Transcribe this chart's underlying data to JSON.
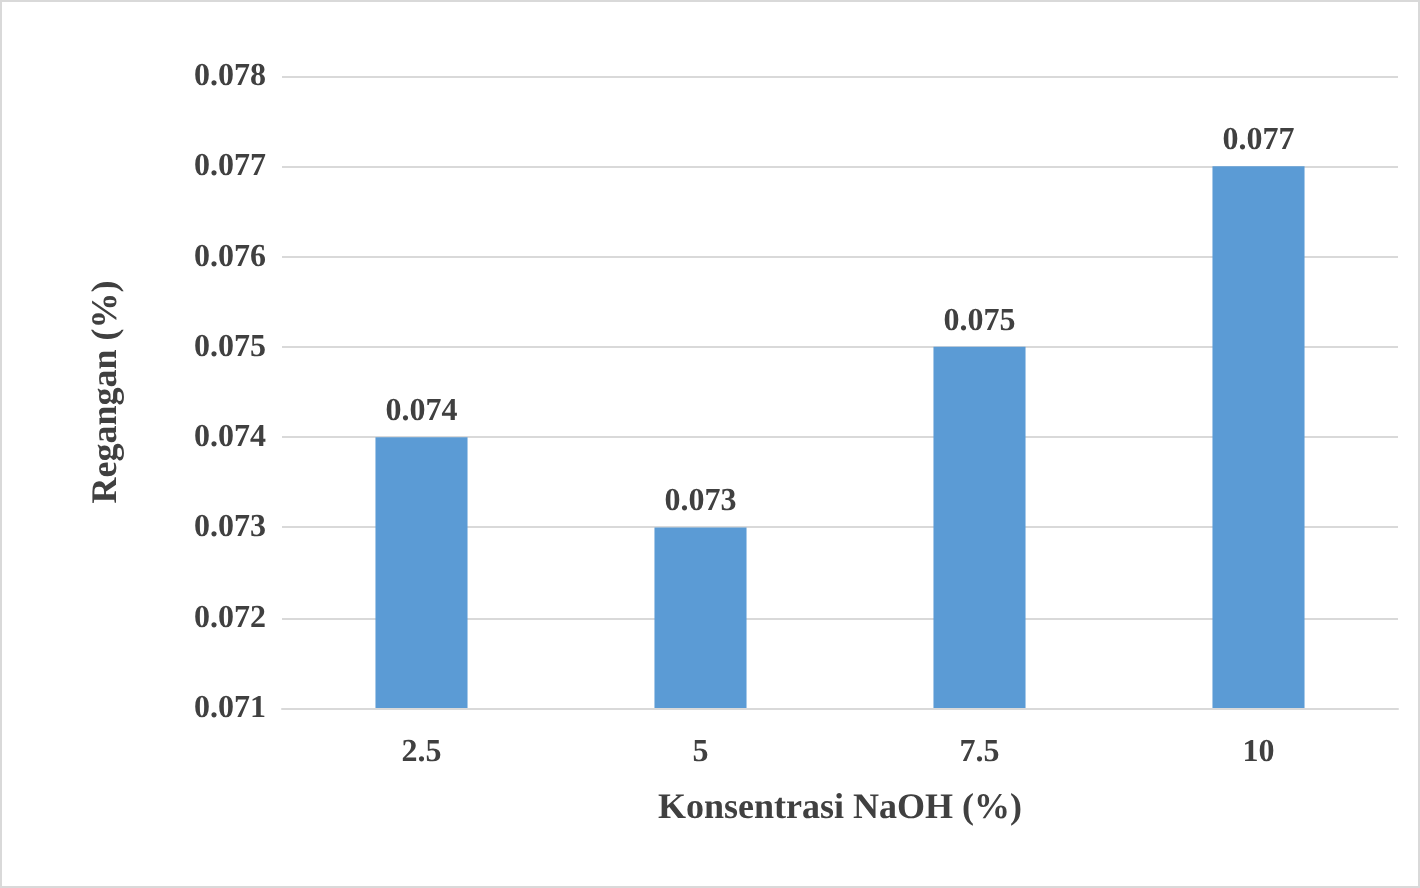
{
  "chart_data": {
    "type": "bar",
    "xlabel": "Konsentrasi NaOH (%)",
    "ylabel": "Regangan (%)",
    "categories": [
      "2.5",
      "5",
      "7.5",
      "10"
    ],
    "values": [
      0.074,
      0.073,
      0.075,
      0.077
    ],
    "color": "#5b9bd5",
    "ylim": [
      0.071,
      0.078
    ],
    "yticks": [
      0.071,
      0.072,
      0.073,
      0.074,
      0.075,
      0.076,
      0.077,
      0.078
    ],
    "grid": "y",
    "data_labels": true
  }
}
